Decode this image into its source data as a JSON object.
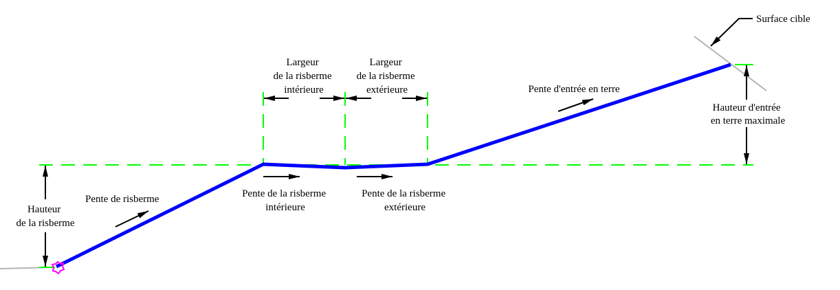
{
  "labels": {
    "surface_cible": "Surface cible",
    "largeur_int": [
      "Largeur",
      "de la risberme",
      "intérieure"
    ],
    "largeur_ext": [
      "Largeur",
      "de la risberme",
      "extérieure"
    ],
    "pente_entree": "Pente d'entrée en terre",
    "hauteur_entree": [
      "Hauteur d'entrée",
      "en terre maximale"
    ],
    "pente_risberme": "Pente de risberme",
    "hauteur_risberme": [
      "Hauteur",
      "de la risberme"
    ],
    "pente_int": [
      "Pente de la risberme",
      "intérieure"
    ],
    "pente_ext": [
      "Pente de la risberme",
      "extérieure"
    ]
  },
  "colors": {
    "profile": "#0000ff",
    "guides": "#00ff00",
    "surface": "#b4b4b4",
    "marker": "#ff00ff",
    "annotation": "#000000"
  }
}
